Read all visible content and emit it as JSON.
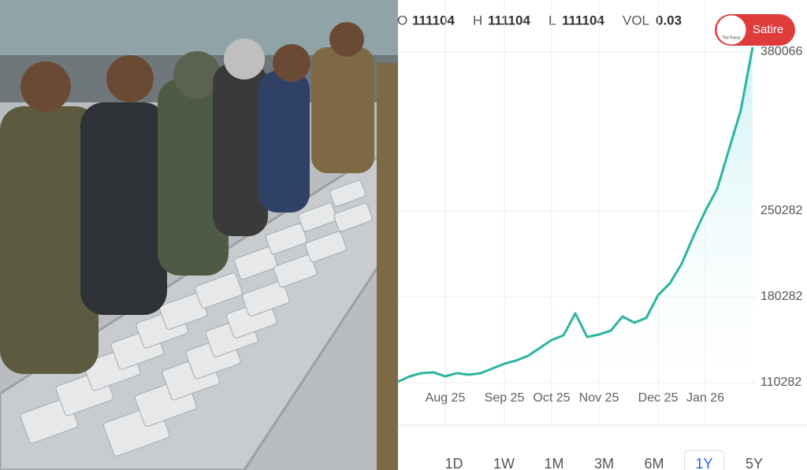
{
  "quote": {
    "open_label": "O",
    "open": "111104",
    "high_label": "H",
    "high": "111104",
    "low_label": "L",
    "low": "111104",
    "vol_label": "VOL",
    "vol": "0.03"
  },
  "badge": {
    "brand": "The Foxxy",
    "label": "Satire"
  },
  "ranges": [
    "1D",
    "1W",
    "1M",
    "3M",
    "6M",
    "1Y",
    "5Y"
  ],
  "selected_range": "1Y",
  "chart_data": {
    "type": "line",
    "categories": [
      null,
      null,
      null,
      null,
      "Aug 25",
      null,
      null,
      null,
      null,
      "Sep 25",
      null,
      null,
      null,
      "Oct 25",
      null,
      null,
      null,
      "Nov 25",
      null,
      null,
      null,
      null,
      "Dec 25",
      null,
      null,
      null,
      "Jan 26",
      null,
      null,
      null,
      null
    ],
    "series": [
      {
        "color": "#2bb5a0",
        "values": [
          111000,
          115400,
          118000,
          118600,
          115400,
          118000,
          116700,
          118000,
          121800,
          125700,
          128300,
          132100,
          138500,
          145000,
          148800,
          166800,
          147500,
          149500,
          152700,
          164200,
          159100,
          163000,
          181600,
          191200,
          207300,
          229700,
          250300,
          268300,
          300400,
          332500,
          383900
        ]
      }
    ],
    "ylim": [
      72000,
      396000
    ],
    "yticks": [
      110282,
      180282,
      250282,
      {
        "value": 380066,
        "label": "380066"
      }
    ],
    "grid": true
  }
}
